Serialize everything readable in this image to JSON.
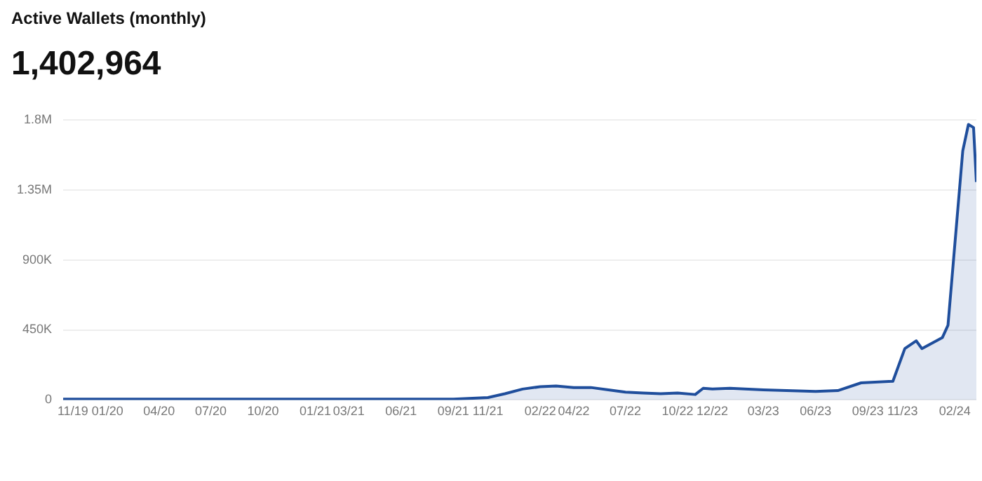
{
  "chart_data": {
    "type": "area",
    "title": "Active Wallets (monthly)",
    "subtitle": "1,402,964",
    "x": [
      "2019-10-15",
      "2020-06-01",
      "2021-01-01",
      "2021-09-01",
      "2021-11-01",
      "2021-12-01",
      "2022-01-01",
      "2022-02-01",
      "2022-03-01",
      "2022-04-01",
      "2022-05-01",
      "2022-06-01",
      "2022-07-01",
      "2022-08-01",
      "2022-09-01",
      "2022-10-01",
      "2022-11-01",
      "2022-11-15",
      "2022-12-01",
      "2023-01-01",
      "2023-03-01",
      "2023-06-01",
      "2023-07-10",
      "2023-08-20",
      "2023-10-15",
      "2023-11-05",
      "2023-11-25",
      "2023-12-05",
      "2024-01-10",
      "2024-01-20",
      "2024-02-15",
      "2024-02-25",
      "2024-03-05",
      "2024-03-10"
    ],
    "series": [
      {
        "color": "#1f4e9c",
        "values": [
          5000,
          5000,
          5000,
          5000,
          15000,
          40000,
          70000,
          85000,
          90000,
          80000,
          80000,
          65000,
          50000,
          45000,
          40000,
          45000,
          35000,
          75000,
          70000,
          75000,
          65000,
          55000,
          60000,
          110000,
          120000,
          330000,
          380000,
          330000,
          400000,
          480000,
          1600000,
          1770000,
          1750000,
          1400000
        ]
      }
    ],
    "xlim": [
      "2019-10-15",
      "2024-03-10"
    ],
    "xticks": [
      {
        "value": "2019-11-01",
        "label": "11/19"
      },
      {
        "value": "2020-01-01",
        "label": "01/20"
      },
      {
        "value": "2020-04-01",
        "label": "04/20"
      },
      {
        "value": "2020-07-01",
        "label": "07/20"
      },
      {
        "value": "2020-10-01",
        "label": "10/20"
      },
      {
        "value": "2021-01-01",
        "label": "01/21"
      },
      {
        "value": "2021-03-01",
        "label": "03/21"
      },
      {
        "value": "2021-06-01",
        "label": "06/21"
      },
      {
        "value": "2021-09-01",
        "label": "09/21"
      },
      {
        "value": "2021-11-01",
        "label": "11/21"
      },
      {
        "value": "2022-02-01",
        "label": "02/22"
      },
      {
        "value": "2022-04-01",
        "label": "04/22"
      },
      {
        "value": "2022-07-01",
        "label": "07/22"
      },
      {
        "value": "2022-10-01",
        "label": "10/22"
      },
      {
        "value": "2022-12-01",
        "label": "12/22"
      },
      {
        "value": "2023-03-01",
        "label": "03/23"
      },
      {
        "value": "2023-06-01",
        "label": "06/23"
      },
      {
        "value": "2023-09-01",
        "label": "09/23"
      },
      {
        "value": "2023-11-01",
        "label": "11/23"
      },
      {
        "value": "2024-02-01",
        "label": "02/24"
      }
    ],
    "ylim": [
      0,
      1800000
    ],
    "yticks": [
      0,
      {
        "value": 450000,
        "label": "450K"
      },
      {
        "value": 900000,
        "label": "900K"
      },
      {
        "value": 1350000,
        "label": "1.35M"
      },
      {
        "value": 1800000,
        "label": "1.8M"
      }
    ],
    "grid": "y",
    "legend": false,
    "marker": "none"
  }
}
